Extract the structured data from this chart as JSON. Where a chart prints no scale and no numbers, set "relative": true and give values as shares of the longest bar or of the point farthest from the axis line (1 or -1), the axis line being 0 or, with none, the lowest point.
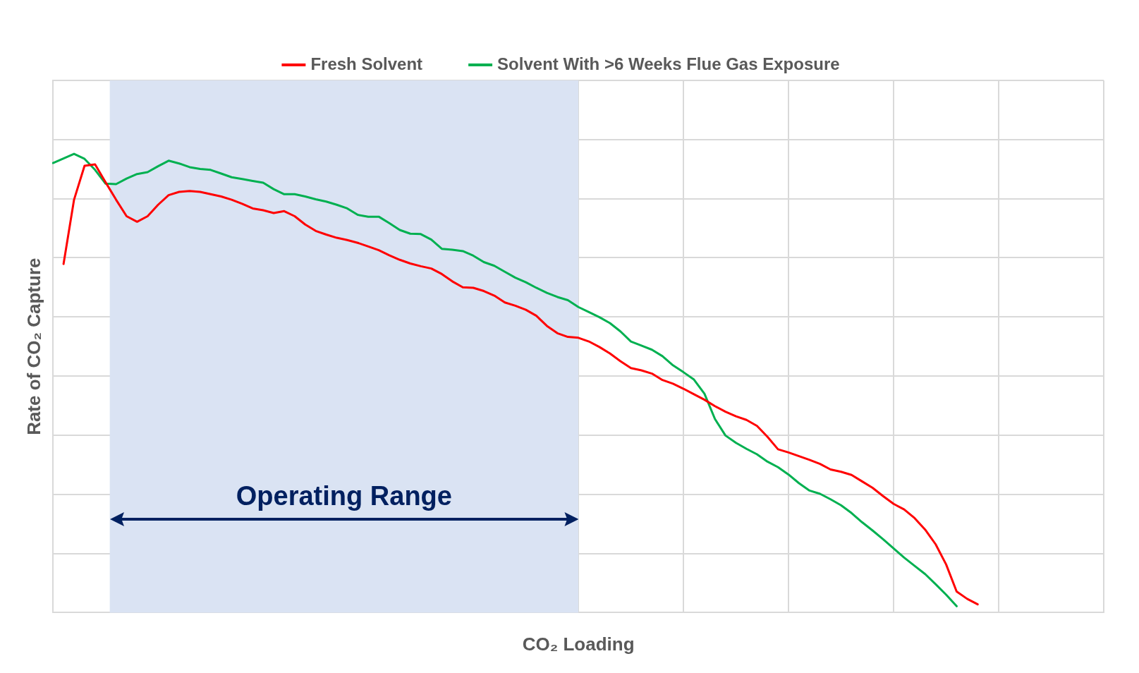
{
  "chart_data": {
    "type": "line",
    "relative": true,
    "xlabel": "CO₂ Loading",
    "ylabel": "Rate of CO₂ Capture",
    "categories": [
      null,
      null,
      null,
      null,
      null,
      null,
      null,
      null,
      null,
      null,
      null,
      null,
      null,
      null,
      null,
      null,
      null,
      null,
      null,
      null,
      null,
      null,
      null,
      null,
      null,
      null,
      null,
      null,
      null,
      null,
      null,
      null,
      null,
      null,
      null,
      null,
      null,
      null,
      null,
      null,
      null,
      null,
      null,
      null,
      null,
      null,
      null,
      null,
      null,
      null,
      null,
      null,
      null,
      null,
      null,
      null,
      null,
      null,
      null,
      null,
      null,
      null,
      null,
      null,
      null,
      null,
      null,
      null,
      null,
      null,
      null,
      null,
      null,
      null,
      null,
      null,
      null,
      null,
      null,
      null,
      null,
      null,
      null,
      null,
      null,
      null,
      null,
      null,
      null,
      null,
      null,
      null,
      null,
      null,
      null,
      null,
      null,
      null,
      null,
      null,
      null
    ],
    "grid": true,
    "legend": "top",
    "marker": "none",
    "line_style": "solid",
    "annotations": [
      "Operating Range"
    ],
    "series": [
      {
        "name": "Fresh Solvent",
        "color": "#ff0000",
        "values": [
          null,
          0.76,
          0.9,
          0.974,
          0.977,
          0.938,
          0.9,
          0.864,
          0.852,
          0.864,
          0.889,
          0.91,
          0.917,
          0.919,
          0.917,
          0.912,
          0.907,
          0.9,
          0.891,
          0.881,
          0.877,
          0.871,
          0.875,
          0.864,
          0.846,
          0.832,
          0.824,
          0.817,
          0.812,
          0.806,
          0.798,
          0.79,
          0.779,
          0.769,
          0.761,
          0.755,
          0.75,
          0.738,
          0.722,
          0.709,
          0.708,
          0.701,
          0.691,
          0.676,
          0.669,
          0.66,
          0.647,
          0.625,
          0.609,
          0.601,
          0.599,
          0.591,
          0.579,
          0.565,
          0.548,
          0.533,
          0.528,
          0.521,
          0.507,
          0.499,
          0.488,
          0.476,
          0.464,
          0.45,
          0.438,
          0.428,
          0.42,
          0.407,
          0.383,
          0.356,
          0.349,
          0.341,
          0.333,
          0.324,
          0.312,
          0.307,
          0.3,
          0.286,
          0.272,
          0.254,
          0.237,
          0.225,
          0.206,
          0.181,
          0.149,
          0.105,
          0.046,
          0.03,
          0.018,
          null,
          null,
          null,
          null,
          null,
          null,
          null,
          null,
          null,
          null,
          null,
          null
        ]
      },
      {
        "name": "Solvent With >6 Weeks Flue Gas Exposure",
        "color": "#00b050",
        "values": [
          0.98,
          0.99,
          1.0,
          0.989,
          0.965,
          0.935,
          0.934,
          0.946,
          0.956,
          0.96,
          0.973,
          0.985,
          0.979,
          0.971,
          0.967,
          0.965,
          0.957,
          0.949,
          0.945,
          0.941,
          0.937,
          0.923,
          0.912,
          0.912,
          0.907,
          0.901,
          0.896,
          0.889,
          0.881,
          0.867,
          0.863,
          0.863,
          0.849,
          0.834,
          0.826,
          0.825,
          0.813,
          0.793,
          0.791,
          0.788,
          0.778,
          0.764,
          0.756,
          0.743,
          0.73,
          0.72,
          0.708,
          0.697,
          0.688,
          0.681,
          0.666,
          0.655,
          0.644,
          0.631,
          0.613,
          0.591,
          0.582,
          0.573,
          0.559,
          0.539,
          0.524,
          0.508,
          0.477,
          0.422,
          0.386,
          0.37,
          0.357,
          0.345,
          0.329,
          0.317,
          0.301,
          0.282,
          0.266,
          0.259,
          0.247,
          0.234,
          0.217,
          0.197,
          0.179,
          0.16,
          0.14,
          0.12,
          0.102,
          0.084,
          0.062,
          0.039,
          0.014,
          null,
          null,
          null,
          null,
          null,
          null,
          null,
          null,
          null,
          null,
          null,
          null,
          null,
          null
        ]
      }
    ]
  }
}
